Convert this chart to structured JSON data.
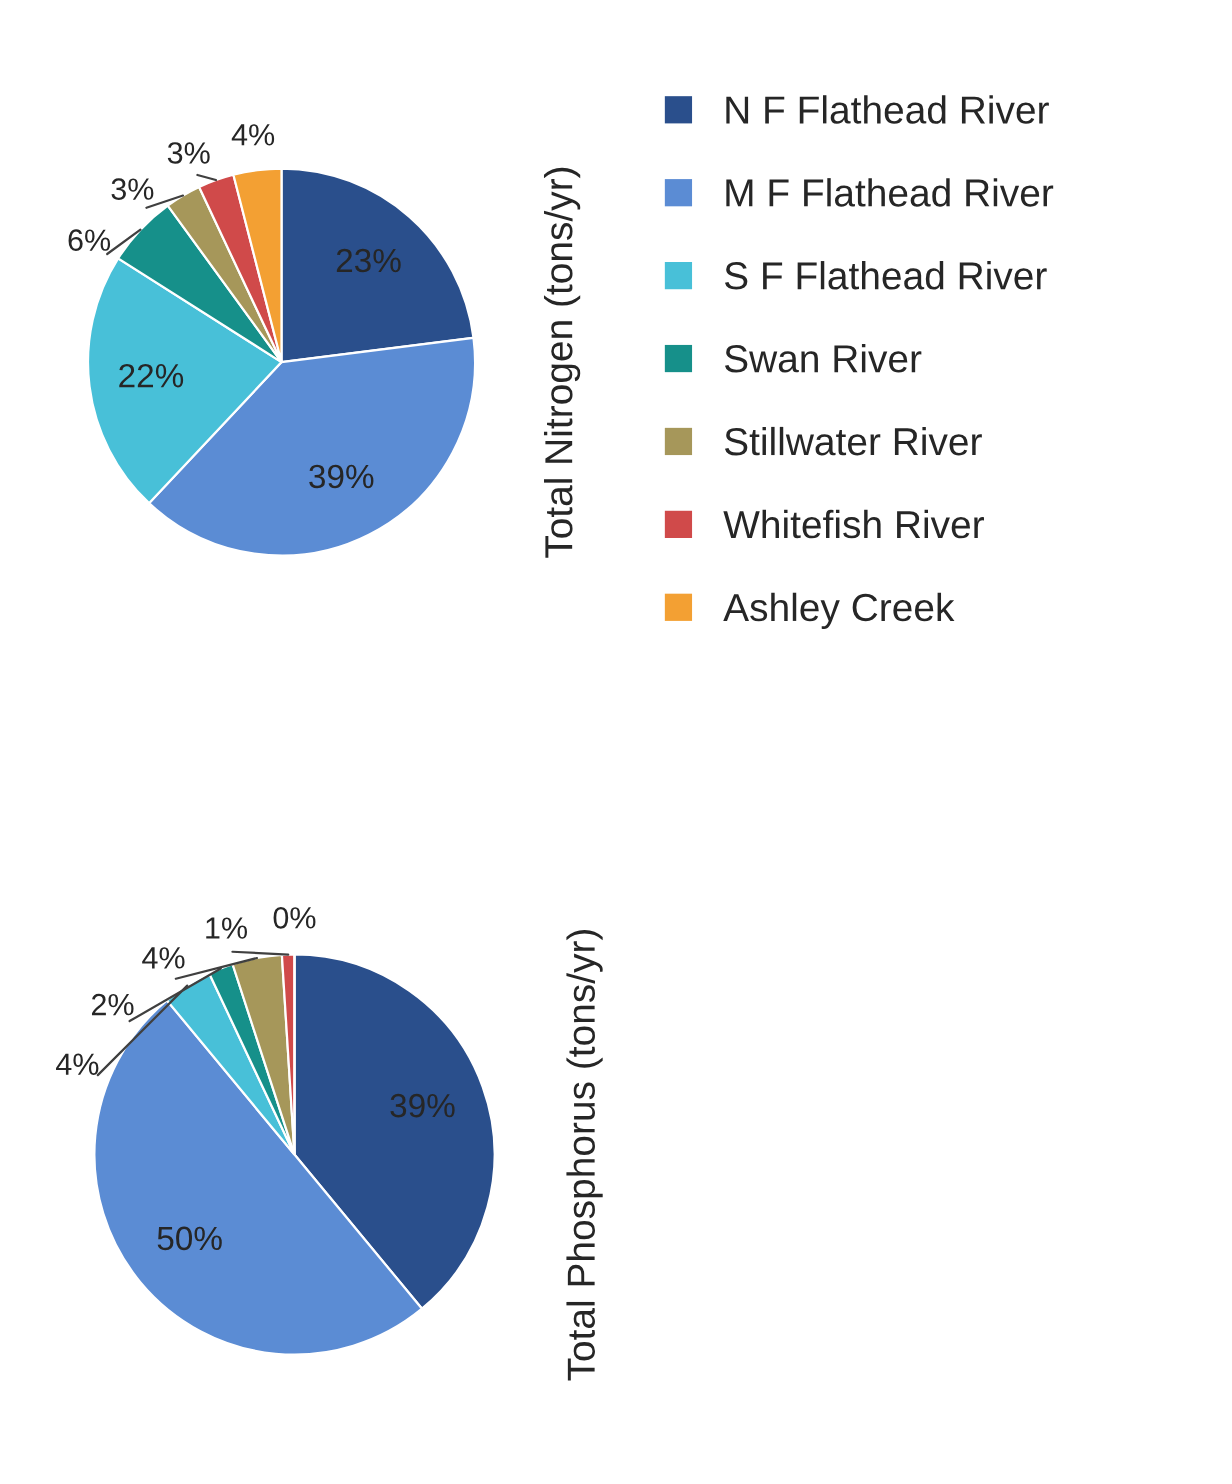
{
  "chart_data": [
    {
      "type": "pie",
      "ylabel": "Total Nitrogen (tons/yr)",
      "categories": [
        "N F Flathead River",
        "M F Flathead River",
        "S F Flathead River",
        "Swan River",
        "Stillwater River",
        "Whitefish River",
        "Ashley Creek"
      ],
      "values": [
        23,
        39,
        22,
        6,
        3,
        3,
        4
      ],
      "value_labels": [
        "23%",
        "39%",
        "22%",
        "6%",
        "3%",
        "3%",
        "4%"
      ],
      "colors": [
        "#2a4f8c",
        "#5b8cd4",
        "#48c0d8",
        "#16908a",
        "#a6975a",
        "#d04a4a",
        "#f3a033"
      ],
      "legend": "right"
    },
    {
      "type": "pie",
      "ylabel": "Total Phosphorus (tons/yr)",
      "categories": [
        null,
        null,
        null,
        null,
        null,
        null,
        null
      ],
      "values": [
        39,
        50,
        4,
        2,
        4,
        1,
        0
      ],
      "value_labels": [
        "39%",
        "50%",
        "4%",
        "2%",
        "4%",
        "1%",
        "0%"
      ],
      "colors": [
        "#2a4f8c",
        "#5b8cd4",
        "#48c0d8",
        "#16908a",
        "#a6975a",
        "#d04a4a",
        "#f3a033"
      ]
    }
  ]
}
